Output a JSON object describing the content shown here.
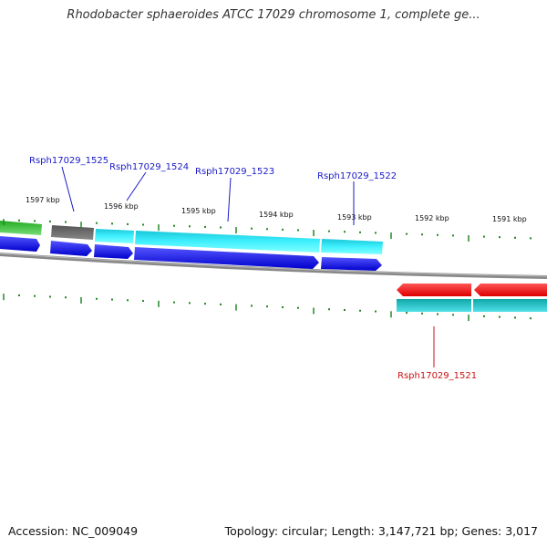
{
  "title": "Rhodobacter sphaeroides ATCC 17029 chromosome 1, complete ge...",
  "footer": {
    "accession": "Accession: NC_009049",
    "topology": "Topology: circular; Length: 3,147,721 bp; Genes: 3,017"
  },
  "scale_labels": [
    "1597 kbp",
    "1596 kbp",
    "1595 kbp",
    "1594 kbp",
    "1593 kbp",
    "1592 kbp",
    "1591 kbp"
  ],
  "gene_labels": {
    "forward": [
      "Rsph17029_1525",
      "Rsph17029_1524",
      "Rsph17029_1523",
      "Rsph17029_1522"
    ],
    "reverse": [
      "Rsph17029_1521"
    ]
  },
  "colors": {
    "backbone": "#808080",
    "cds_forward": "#0000e0",
    "cds_reverse": "#ee0000",
    "gene_cyan": "#20e0f0",
    "gene_teal": "#20c8c8",
    "gene_gray": "#666666",
    "gene_green": "#33bb33",
    "tick": "#228822"
  }
}
